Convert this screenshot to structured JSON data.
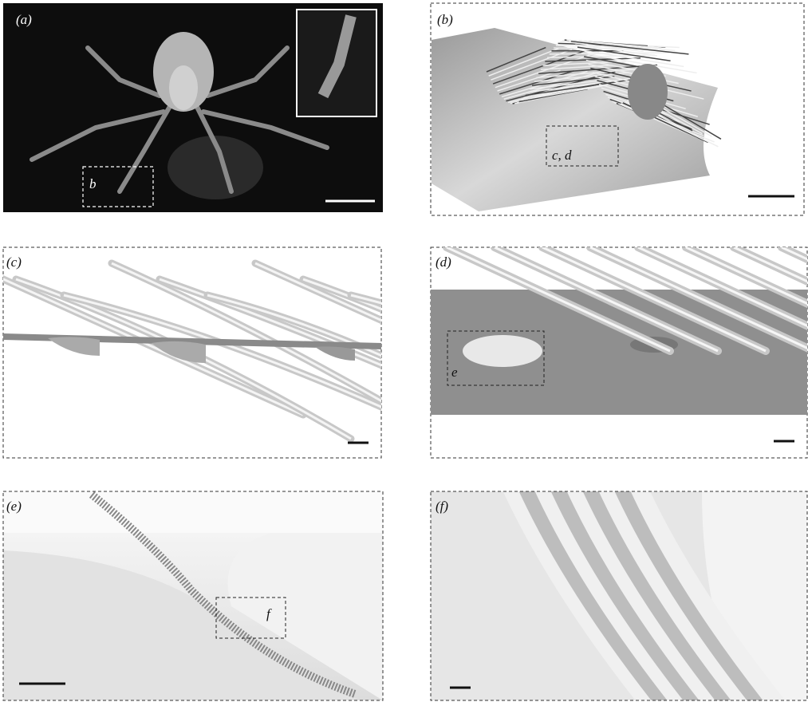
{
  "panels": [
    {
      "label": "(a)",
      "callout": "b"
    },
    {
      "label": "(b)",
      "callout": "c, d"
    },
    {
      "label": "(c)"
    },
    {
      "label": "(d)",
      "callout": "e"
    },
    {
      "label": "(e)",
      "callout": "f"
    },
    {
      "label": "(f)"
    }
  ]
}
